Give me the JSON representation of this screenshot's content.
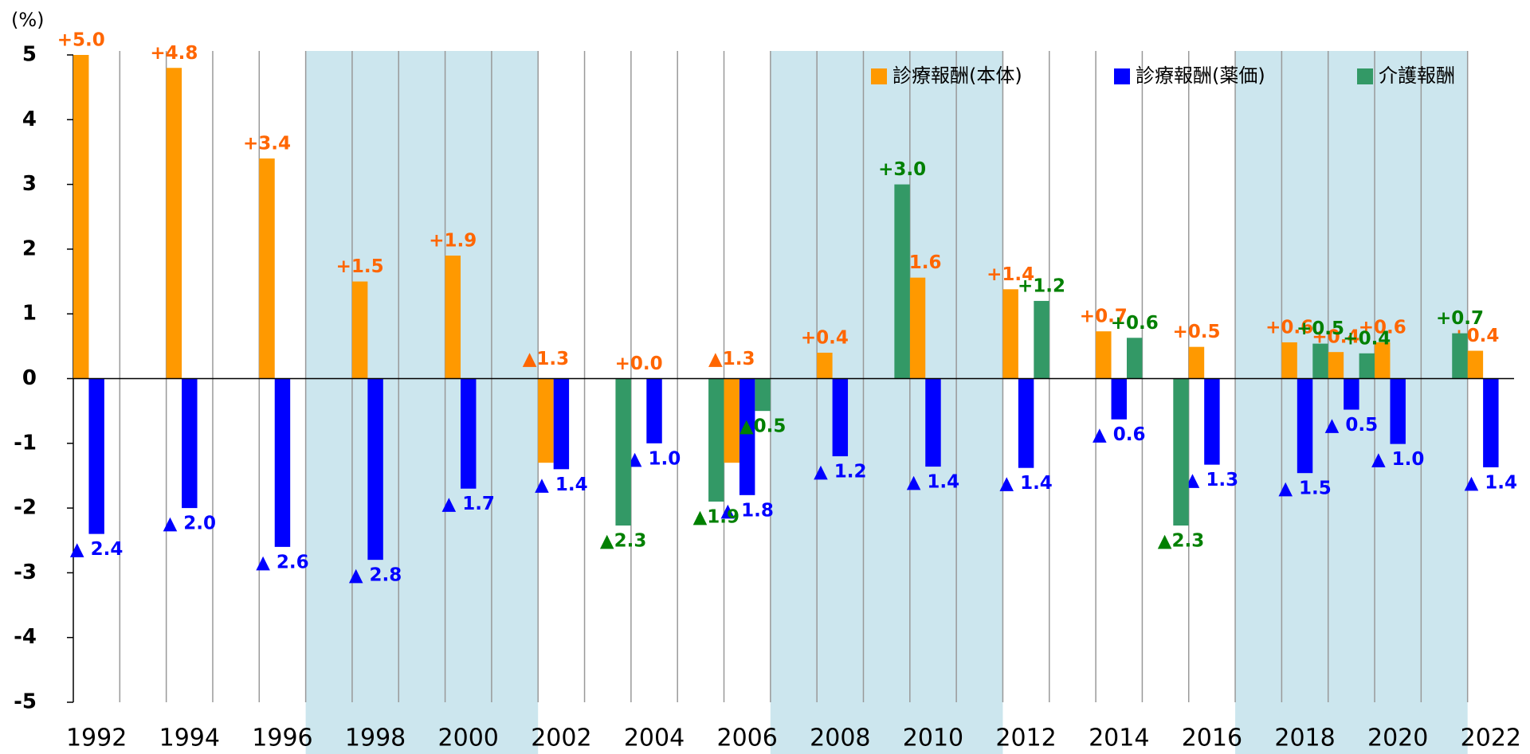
{
  "chart_data": {
    "type": "bar",
    "y_label": "(%)",
    "categories": [
      "1992",
      null,
      "1994",
      null,
      "1996",
      null,
      "1998",
      null,
      "2000",
      null,
      "2002",
      null,
      "2004",
      null,
      "2006",
      null,
      "2008",
      null,
      "2010",
      null,
      "2012",
      null,
      "2014",
      null,
      "2016",
      null,
      "2018",
      null,
      "2020",
      null,
      "2022"
    ],
    "ylim": [
      -5,
      5
    ],
    "yticks": [
      5,
      4,
      3,
      2,
      1,
      0,
      -1,
      -2,
      -3,
      -4,
      -5
    ],
    "legend": "top-right",
    "series": [
      {
        "name": "診療報酬(本体)",
        "color": "#ff9900",
        "label_color": "#ff6600",
        "values": [
          5.0,
          null,
          4.8,
          null,
          3.4,
          null,
          1.5,
          null,
          1.9,
          null,
          -1.3,
          null,
          0.0,
          null,
          -1.3,
          null,
          0.4,
          null,
          1.56,
          null,
          1.38,
          null,
          0.73,
          null,
          0.49,
          null,
          0.56,
          0.41,
          0.56,
          null,
          0.43
        ],
        "value_labels": [
          "+5.0",
          null,
          "+4.8",
          null,
          "+3.4",
          null,
          "+1.5",
          null,
          "+1.9",
          null,
          "▲1.3",
          null,
          "+0.0",
          null,
          "▲1.3",
          null,
          "+0.4",
          null,
          "+1.6",
          null,
          "+1.4",
          null,
          "+0.7",
          null,
          "+0.5",
          null,
          "+0.6",
          "+0.4",
          "+0.6",
          null,
          "+0.4"
        ]
      },
      {
        "name": "診療報酬(薬価)",
        "color": "#0000ff",
        "label_color": "#0000ff",
        "values": [
          -2.4,
          null,
          -2.0,
          null,
          -2.6,
          null,
          -2.8,
          null,
          -1.7,
          null,
          -1.4,
          null,
          -1.0,
          null,
          -1.8,
          null,
          -1.2,
          null,
          -1.36,
          null,
          -1.38,
          null,
          -0.63,
          null,
          -1.33,
          null,
          -1.46,
          -0.48,
          -1.01,
          null,
          -1.37
        ],
        "value_labels": [
          "▲ 2.4",
          null,
          "▲ 2.0",
          null,
          "▲ 2.6",
          null,
          "▲ 2.8",
          null,
          "▲ 1.7",
          null,
          "▲ 1.4",
          null,
          "▲ 1.0",
          null,
          "▲ 1.8",
          null,
          "▲ 1.2",
          null,
          "▲ 1.4",
          null,
          "▲ 1.4",
          null,
          "▲ 0.6",
          null,
          "▲ 1.3",
          null,
          "▲ 1.5",
          "▲ 0.5",
          "▲ 1.0",
          null,
          "▲ 1.4"
        ]
      },
      {
        "name": "介護報酬",
        "color": "#339966",
        "label_color": "#008000",
        "values": [
          null,
          null,
          null,
          null,
          null,
          null,
          null,
          null,
          null,
          null,
          null,
          -2.27,
          null,
          -1.9,
          -0.5,
          null,
          null,
          3.0,
          null,
          null,
          1.2,
          null,
          0.63,
          -2.27,
          null,
          null,
          0.54,
          0.39,
          null,
          0.7,
          null
        ],
        "value_labels": [
          null,
          null,
          null,
          null,
          null,
          null,
          null,
          null,
          null,
          null,
          null,
          "▲2.3",
          null,
          "▲1.9",
          "▲0.5",
          null,
          null,
          "+3.0",
          null,
          null,
          "+1.2",
          null,
          "+0.6",
          "▲2.3",
          null,
          null,
          "+0.5",
          "+0.4",
          null,
          "+0.7",
          null
        ]
      }
    ]
  }
}
